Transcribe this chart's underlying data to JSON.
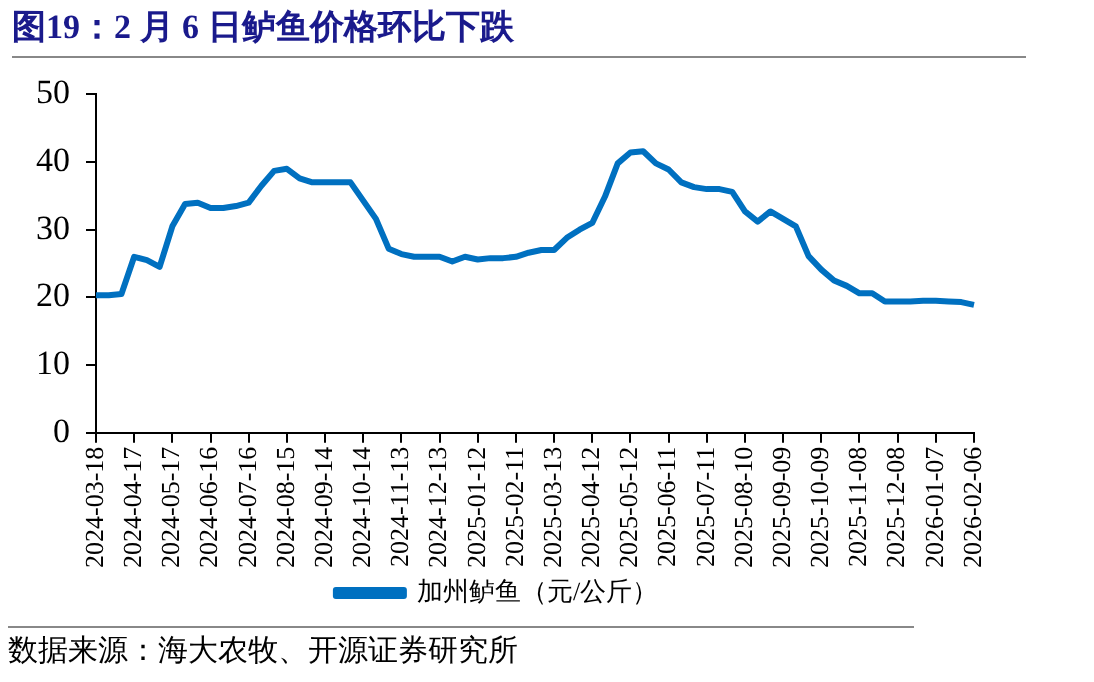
{
  "chart_data": {
    "type": "line",
    "title": "图19：2 月 6 日鲈鱼价格环比下跌",
    "categories": [
      "2024-03-18",
      null,
      null,
      "2024-04-17",
      null,
      null,
      "2024-05-17",
      null,
      null,
      "2024-06-16",
      null,
      null,
      "2024-07-16",
      null,
      null,
      "2024-08-15",
      null,
      null,
      "2024-09-14",
      null,
      null,
      "2024-10-14",
      null,
      null,
      "2024-11-13",
      null,
      null,
      "2024-12-13",
      null,
      null,
      "2025-01-12",
      null,
      null,
      "2025-02-11",
      null,
      null,
      "2025-03-13",
      null,
      null,
      "2025-04-12",
      null,
      null,
      "2025-05-12",
      null,
      null,
      "2025-06-11",
      null,
      null,
      "2025-07-11",
      null,
      null,
      "2025-08-10",
      null,
      null,
      "2025-09-09",
      null,
      null,
      "2025-10-09",
      null,
      null,
      "2025-11-08",
      null,
      null,
      "2025-12-08",
      null,
      null,
      "2026-01-07",
      null,
      null,
      "2026-02-06"
    ],
    "series": [
      {
        "name": "加州鲈鱼（元/公斤）",
        "color": "#0070c0",
        "values": [
          20.3,
          20.3,
          20.5,
          26,
          25.5,
          24.5,
          30.5,
          33.8,
          34,
          33.2,
          33.2,
          33.5,
          34,
          36.5,
          38.7,
          39,
          37.6,
          37,
          37,
          37,
          37,
          34.3,
          31.6,
          27.2,
          26.4,
          26,
          26,
          26,
          25.3,
          26,
          25.6,
          25.8,
          25.8,
          26,
          26.6,
          27,
          27,
          28.8,
          30,
          31,
          34.9,
          39.8,
          41.4,
          41.6,
          39.8,
          38.9,
          37,
          36.3,
          36,
          36,
          35.6,
          32.7,
          31.2,
          32.7,
          31.6,
          30.5,
          26.1,
          24.1,
          22.5,
          21.7,
          20.6,
          20.6,
          19.4,
          19.4,
          19.4,
          19.5,
          19.5,
          19.4,
          19.3,
          18.9
        ]
      }
    ],
    "ylim": [
      0,
      50
    ],
    "yticks": [
      0,
      10,
      20,
      30,
      40,
      50
    ],
    "grid": false,
    "legend": "bottom",
    "marker": "none",
    "line_style": "solid",
    "annotations": [
      "数据来源：海大农牧、开源证券研究所"
    ]
  }
}
